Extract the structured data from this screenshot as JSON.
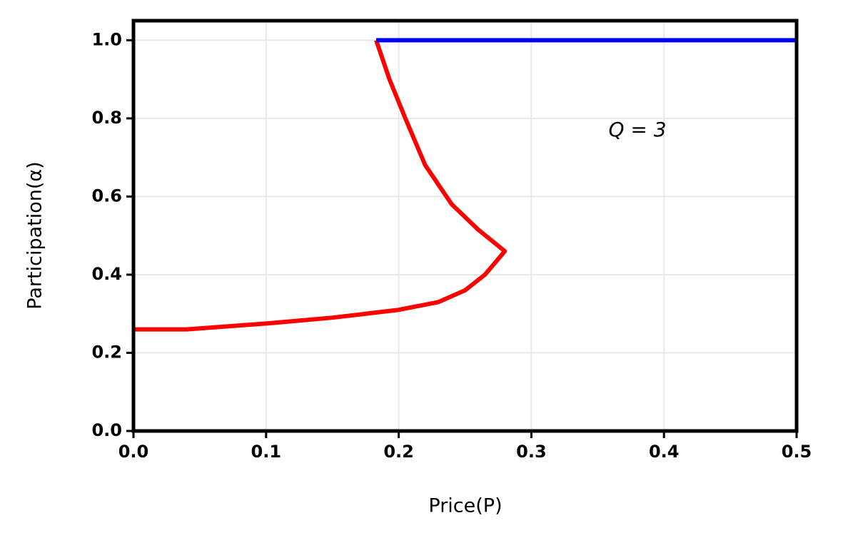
{
  "chart_data": {
    "type": "line",
    "xlabel": "Price(P)",
    "ylabel": "Participation(α)",
    "annotation": "Q = 3",
    "xlim": [
      0,
      0.5
    ],
    "ylim": [
      0,
      1.05
    ],
    "xticks": [
      {
        "value": 0,
        "label": "0.0"
      },
      0.1,
      0.2,
      0.3,
      0.4,
      0.5
    ],
    "yticks": [
      {
        "value": 0,
        "label": "0.0"
      },
      0.2,
      0.4,
      0.6,
      0.8,
      {
        "value": 1,
        "label": "1.0"
      }
    ],
    "grid": true,
    "series": [
      {
        "color": "#ff0000",
        "x": [
          0,
          0.04,
          0.1,
          0.15,
          0.2,
          0.23,
          0.25,
          0.265,
          0.28,
          0.26,
          0.24,
          0.22,
          0.205,
          0.193,
          0.183
        ],
        "values": [
          0.26,
          0.26,
          0.275,
          0.29,
          0.31,
          0.33,
          0.36,
          0.4,
          0.46,
          0.515,
          0.58,
          0.68,
          0.8,
          0.9,
          1.0
        ]
      },
      {
        "color": "#0000ff",
        "x": [
          0.183,
          0.5
        ],
        "values": [
          1.0,
          1.0
        ]
      }
    ]
  }
}
